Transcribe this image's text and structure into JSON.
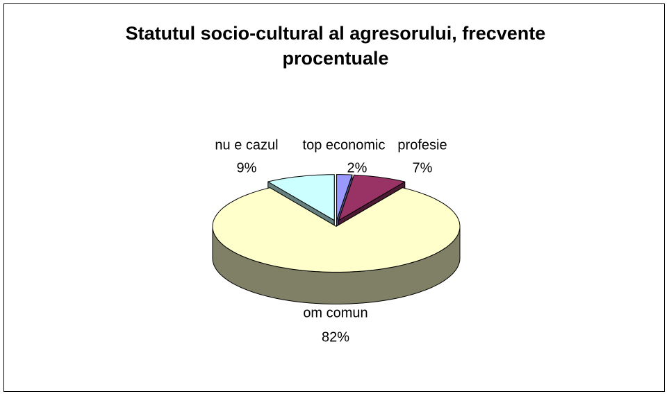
{
  "chart_data": {
    "type": "pie3d",
    "title": "Statutul socio-cultural al agresorului, frecvente procentuale",
    "categories": [
      "top economic",
      "profesie",
      "om comun",
      "nu e cazul"
    ],
    "values": [
      2,
      7,
      82,
      9
    ],
    "value_labels": [
      "2%",
      "7%",
      "82%",
      "9%"
    ],
    "colors": [
      "#9999ff",
      "#993366",
      "#ffffcc",
      "#ccffff"
    ]
  }
}
